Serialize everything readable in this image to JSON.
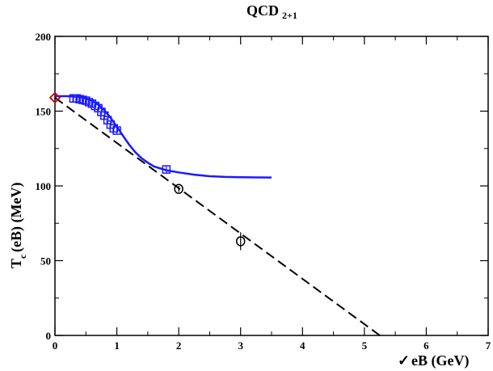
{
  "chart_data": {
    "type": "scatter",
    "title_main": "QCD",
    "title_sub": "2+1",
    "xlabel_main": "eB  (GeV)",
    "xlabel_symbol": "✓",
    "ylabel_main": "T",
    "ylabel_sub": "c",
    "ylabel_rest": " (eB)  (MeV)",
    "xlim": [
      0,
      7
    ],
    "ylim": [
      0,
      200
    ],
    "x_ticks": [
      0,
      1,
      2,
      3,
      4,
      5,
      6,
      7
    ],
    "y_ticks": [
      0,
      50,
      100,
      150,
      200
    ],
    "grid": false,
    "colors": {
      "blue": "#1a1aff",
      "red": "#cc0000",
      "black": "#000000"
    },
    "series": [
      {
        "marker": "diamond",
        "color": "red",
        "points": [
          {
            "x": 0.0,
            "y": 159
          }
        ]
      },
      {
        "marker": "square",
        "color": "blue",
        "points": [
          {
            "x": 0.3,
            "y": 158.5
          },
          {
            "x": 0.35,
            "y": 158.5
          },
          {
            "x": 0.4,
            "y": 158
          },
          {
            "x": 0.45,
            "y": 157.5
          },
          {
            "x": 0.5,
            "y": 157
          },
          {
            "x": 0.55,
            "y": 156
          },
          {
            "x": 0.6,
            "y": 155
          },
          {
            "x": 0.65,
            "y": 153.5
          },
          {
            "x": 0.7,
            "y": 152
          },
          {
            "x": 0.75,
            "y": 149.5
          },
          {
            "x": 0.8,
            "y": 147
          },
          {
            "x": 0.85,
            "y": 144
          },
          {
            "x": 0.9,
            "y": 141
          },
          {
            "x": 0.95,
            "y": 138.5
          },
          {
            "x": 1.0,
            "y": 137
          },
          {
            "x": 1.8,
            "y": 111
          }
        ]
      },
      {
        "marker": "circle",
        "color": "black",
        "errorbars": true,
        "points": [
          {
            "x": 2.0,
            "y": 98,
            "err": 2
          },
          {
            "x": 3.0,
            "y": 63,
            "err": 6
          }
        ]
      },
      {
        "style": "solid-line",
        "color": "blue",
        "points": [
          {
            "x": 0.0,
            "y": 160
          },
          {
            "x": 0.2,
            "y": 160
          },
          {
            "x": 0.4,
            "y": 159.5
          },
          {
            "x": 0.5,
            "y": 158.5
          },
          {
            "x": 0.6,
            "y": 157
          },
          {
            "x": 0.7,
            "y": 154.5
          },
          {
            "x": 0.8,
            "y": 150.5
          },
          {
            "x": 0.9,
            "y": 145.5
          },
          {
            "x": 1.0,
            "y": 139.5
          },
          {
            "x": 1.1,
            "y": 133.5
          },
          {
            "x": 1.2,
            "y": 127.5
          },
          {
            "x": 1.3,
            "y": 122.5
          },
          {
            "x": 1.4,
            "y": 118.5
          },
          {
            "x": 1.5,
            "y": 115.5
          },
          {
            "x": 1.6,
            "y": 113
          },
          {
            "x": 1.8,
            "y": 110.5
          },
          {
            "x": 2.0,
            "y": 109
          },
          {
            "x": 2.25,
            "y": 107.5
          },
          {
            "x": 2.5,
            "y": 106.5
          },
          {
            "x": 2.75,
            "y": 106
          },
          {
            "x": 3.0,
            "y": 105.8
          },
          {
            "x": 3.25,
            "y": 105.7
          },
          {
            "x": 3.5,
            "y": 105.6
          }
        ]
      },
      {
        "style": "dashed-line",
        "color": "black",
        "points": [
          {
            "x": 0.0,
            "y": 159
          },
          {
            "x": 5.25,
            "y": 0
          }
        ]
      }
    ]
  }
}
